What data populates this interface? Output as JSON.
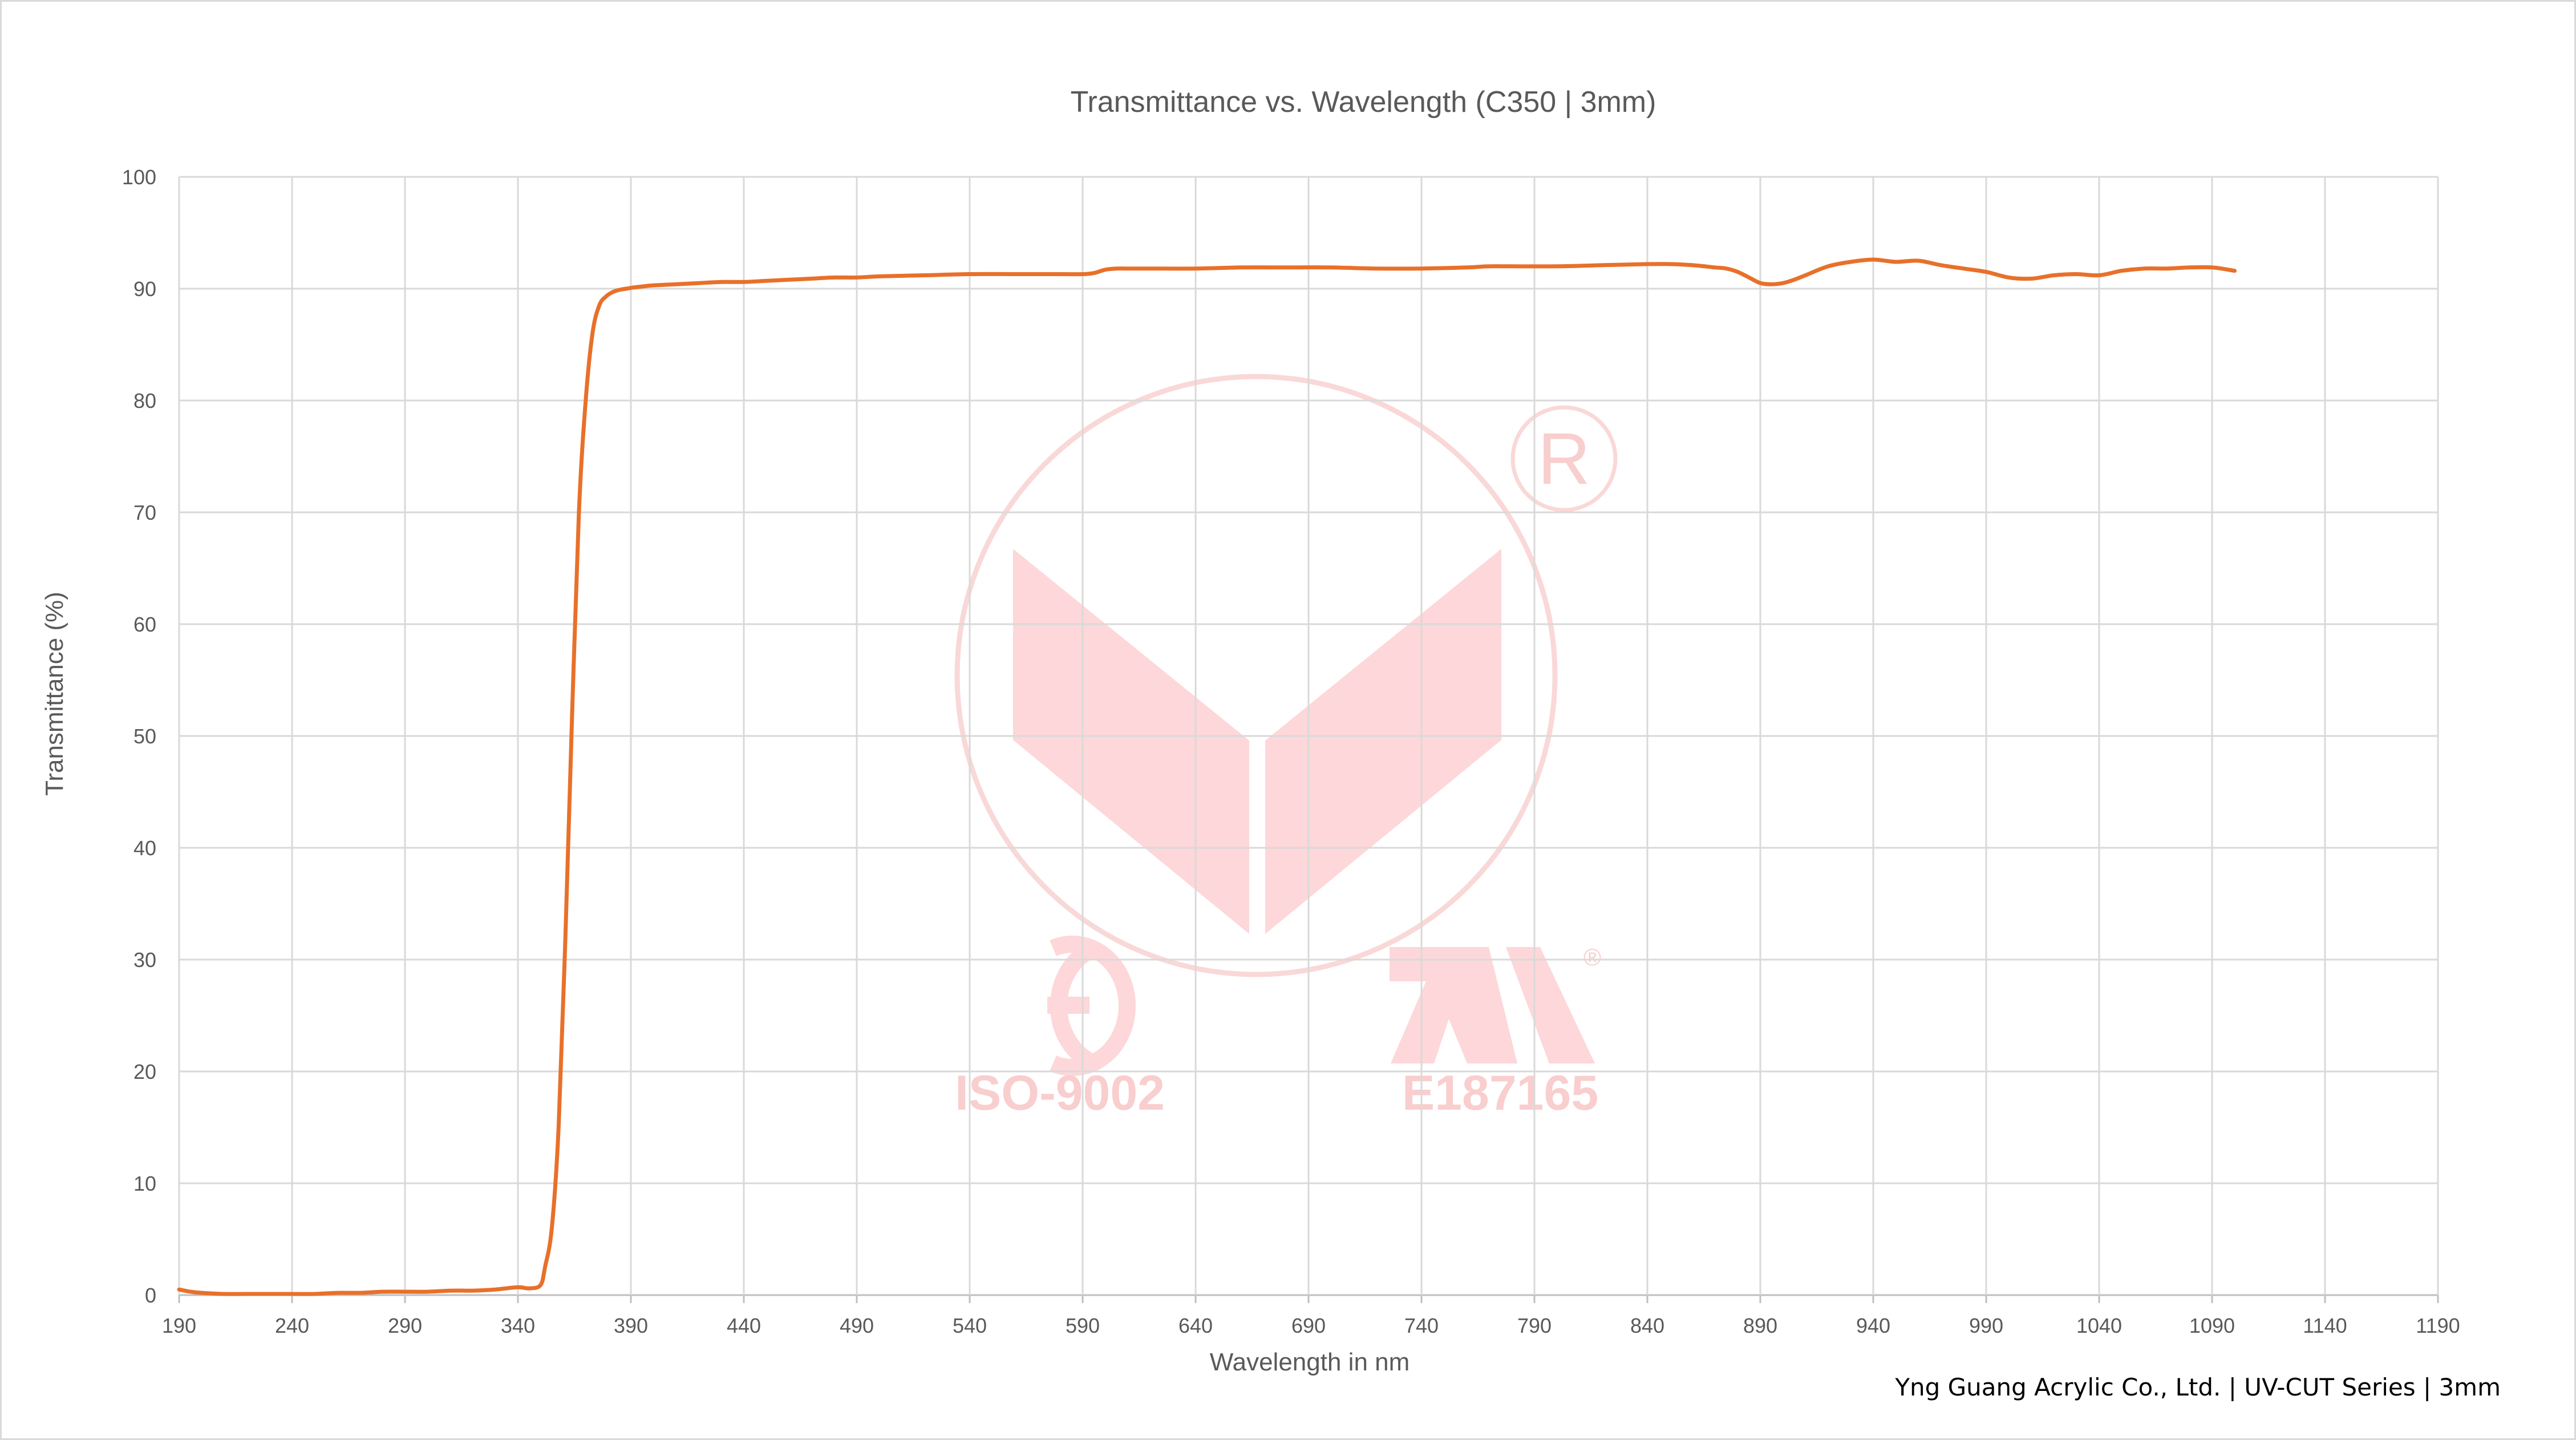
{
  "chart_data": {
    "type": "line",
    "title": "Transmittance vs. Wavelength (C350 | 3mm)",
    "xlabel": "Wavelength in nm",
    "ylabel": "Transmittance (%)",
    "xlim": [
      190,
      1190
    ],
    "ylim": [
      0,
      100
    ],
    "xticks": [
      190,
      240,
      290,
      340,
      390,
      440,
      490,
      540,
      590,
      640,
      690,
      740,
      790,
      840,
      890,
      940,
      990,
      1040,
      1090,
      1140,
      1190
    ],
    "yticks": [
      0,
      10,
      20,
      30,
      40,
      50,
      60,
      70,
      80,
      90,
      100
    ],
    "grid": true,
    "legend": "none",
    "line_color": "#e8702a",
    "series": [
      {
        "x": [
          190,
          195,
          200,
          210,
          220,
          240,
          250,
          260,
          270,
          280,
          290,
          300,
          310,
          320,
          330,
          340,
          345,
          350,
          352,
          355,
          358,
          361,
          364,
          367,
          370,
          373,
          376,
          379,
          382,
          385,
          388,
          391,
          395,
          400,
          410,
          420,
          430,
          440,
          450,
          460,
          470,
          480,
          490,
          500,
          520,
          540,
          560,
          580,
          590,
          595,
          600,
          605,
          610,
          620,
          640,
          660,
          680,
          700,
          720,
          740,
          760,
          770,
          780,
          800,
          820,
          840,
          850,
          860,
          870,
          875,
          880,
          885,
          890,
          895,
          900,
          905,
          910,
          920,
          930,
          940,
          950,
          960,
          970,
          980,
          990,
          1000,
          1010,
          1020,
          1030,
          1040,
          1050,
          1060,
          1070,
          1080,
          1090,
          1100
        ],
        "y": [
          0.5,
          0.3,
          0.2,
          0.1,
          0.1,
          0.1,
          0.1,
          0.2,
          0.2,
          0.3,
          0.3,
          0.3,
          0.4,
          0.4,
          0.5,
          0.7,
          0.6,
          0.9,
          2.5,
          6,
          15,
          32,
          52,
          70,
          80,
          86,
          88.5,
          89.3,
          89.7,
          89.9,
          90.0,
          90.1,
          90.2,
          90.3,
          90.4,
          90.5,
          90.6,
          90.6,
          90.7,
          90.8,
          90.9,
          91.0,
          91.0,
          91.1,
          91.2,
          91.3,
          91.3,
          91.3,
          91.3,
          91.4,
          91.7,
          91.8,
          91.8,
          91.8,
          91.8,
          91.9,
          91.9,
          91.9,
          91.8,
          91.8,
          91.9,
          92.0,
          92.0,
          92.0,
          92.1,
          92.2,
          92.2,
          92.1,
          91.9,
          91.8,
          91.5,
          91.0,
          90.5,
          90.4,
          90.5,
          90.8,
          91.2,
          92.0,
          92.4,
          92.6,
          92.4,
          92.5,
          92.1,
          91.8,
          91.5,
          91.0,
          90.9,
          91.2,
          91.3,
          91.2,
          91.6,
          91.8,
          91.8,
          91.9,
          91.9,
          91.6
        ]
      }
    ]
  },
  "watermark": {
    "registered_symbol": "R",
    "left_text": "ISO-9002",
    "right_text": "E187165",
    "color": "#f9c9c9"
  },
  "footer": {
    "text": "Yng Guang Acrylic Co., Ltd. | UV-CUT Series | 3mm"
  }
}
